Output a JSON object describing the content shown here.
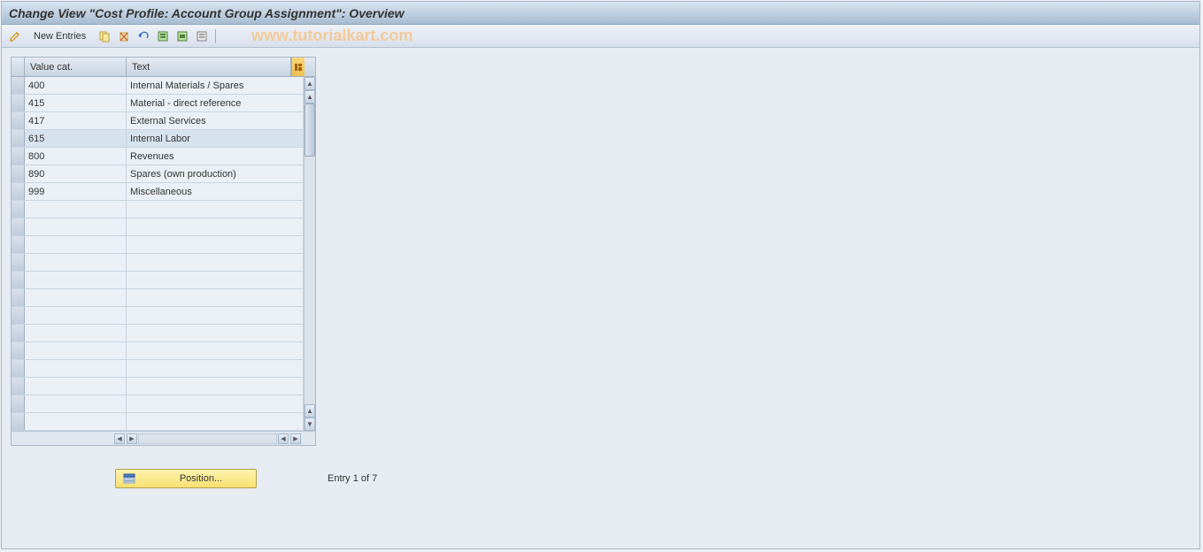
{
  "colors": {
    "header_grad_top": "#d8e4f0",
    "header_grad_bot": "#a8bcd0",
    "toolbar_grad_top": "#eef2f8",
    "toolbar_grad_bot": "#d8e0ec",
    "grid_header_top": "#e4eaf2",
    "grid_header_bot": "#c8d4e0",
    "row_bg": "#eaf0f6",
    "row_selected": "#d6e2ee",
    "border": "#a8b8c8",
    "settings_btn": "#f0c050",
    "position_btn_top": "#fff4b0",
    "position_btn_bot": "#f8e070",
    "watermark": "#f5c58a",
    "content_bg": "#e6ecf2"
  },
  "header": {
    "title": "Change View \"Cost Profile: Account Group Assignment\": Overview"
  },
  "toolbar": {
    "new_entries": "New Entries",
    "watermark": "www.tutorialkart.com"
  },
  "grid": {
    "columns": {
      "col1": "Value cat.",
      "col2": "Text"
    },
    "rows": [
      {
        "value_cat": "400",
        "text": "Internal Materials / Spares"
      },
      {
        "value_cat": "415",
        "text": "Material - direct reference"
      },
      {
        "value_cat": "417",
        "text": "External Services"
      },
      {
        "value_cat": "615",
        "text": "Internal Labor"
      },
      {
        "value_cat": "800",
        "text": "Revenues"
      },
      {
        "value_cat": "890",
        "text": "Spares (own production)"
      },
      {
        "value_cat": "999",
        "text": "Miscellaneous"
      }
    ],
    "empty_rows": 13,
    "selected_index": 3
  },
  "footer": {
    "position_label": "Position...",
    "entry_text": "Entry 1 of 7"
  }
}
